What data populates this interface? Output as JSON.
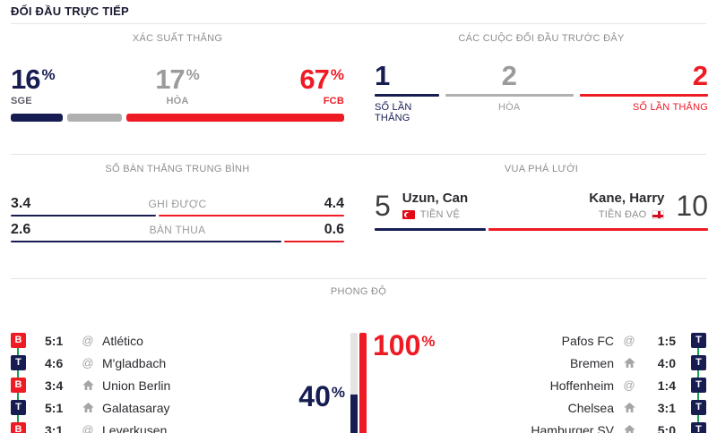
{
  "page_title": "ĐỐI ĐẦU TRỰC TIẾP",
  "colors": {
    "navy": "#171d52",
    "red": "#ee1b24",
    "gray_bar": "#b0b0b0",
    "gray_text": "#8e8e8e",
    "green_connector": "#12a34b",
    "track_gray": "#e4e4e4"
  },
  "icons": {
    "away_symbol": "@"
  },
  "win_probability": {
    "title": "XÁC SUẤT THẮNG",
    "unit": "%",
    "home": {
      "value": "16",
      "label": "SGE",
      "percent": 16
    },
    "draw": {
      "value": "17",
      "label": "HÒA",
      "percent": 17
    },
    "away": {
      "value": "67",
      "label": "FCB",
      "percent": 67
    }
  },
  "head_to_head": {
    "title": "CÁC CUỘC ĐỐI ĐẦU TRƯỚC ĐÂY",
    "home": {
      "value": "1",
      "label": "SỐ LẦN THẮNG",
      "share": 20
    },
    "draw": {
      "value": "2",
      "label": "HÒA",
      "share": 40
    },
    "away": {
      "value": "2",
      "label": "SỐ LẦN THẮNG",
      "share": 40
    }
  },
  "avg_goals": {
    "title": "SỐ BÀN THẮNG TRUNG BÌNH",
    "rows": [
      {
        "home": "3.4",
        "label": "GHI ĐƯỢC",
        "away": "4.4",
        "home_percent": 43.6
      },
      {
        "home": "2.6",
        "label": "BÀN THUA",
        "away": "0.6",
        "home_percent": 81.3
      }
    ]
  },
  "top_scorers": {
    "title": "VUA PHÁ LƯỚI",
    "home_percent": 33.3,
    "home": {
      "goals": "5",
      "name": "Uzun, Can",
      "position": "TIỀN VỆ",
      "flag": "turkey-flag"
    },
    "away": {
      "goals": "10",
      "name": "Kane, Harry",
      "position": "TIỀN ĐẠO",
      "flag": "england-flag"
    }
  },
  "form": {
    "title": "PHONG ĐỘ",
    "unit": "%",
    "home_value": "40",
    "away_value": "100",
    "home_percent": 40,
    "away_percent": 100,
    "home_matches": [
      {
        "result": "B",
        "score": "5:1",
        "venue": "away",
        "team": "Atlético"
      },
      {
        "result": "T",
        "score": "4:6",
        "venue": "away",
        "team": "M'gladbach"
      },
      {
        "result": "B",
        "score": "3:4",
        "venue": "home",
        "team": "Union Berlin"
      },
      {
        "result": "T",
        "score": "5:1",
        "venue": "home",
        "team": "Galatasaray"
      },
      {
        "result": "B",
        "score": "3:1",
        "venue": "away",
        "team": "Leverkusen"
      }
    ],
    "away_matches": [
      {
        "team": "Pafos FC",
        "venue": "away",
        "score": "1:5",
        "result": "T"
      },
      {
        "team": "Bremen",
        "venue": "home",
        "score": "4:0",
        "result": "T"
      },
      {
        "team": "Hoffenheim",
        "venue": "away",
        "score": "1:4",
        "result": "T"
      },
      {
        "team": "Chelsea",
        "venue": "home",
        "score": "3:1",
        "result": "T"
      },
      {
        "team": "Hamburger SV",
        "venue": "home",
        "score": "5:0",
        "result": "T"
      }
    ]
  }
}
